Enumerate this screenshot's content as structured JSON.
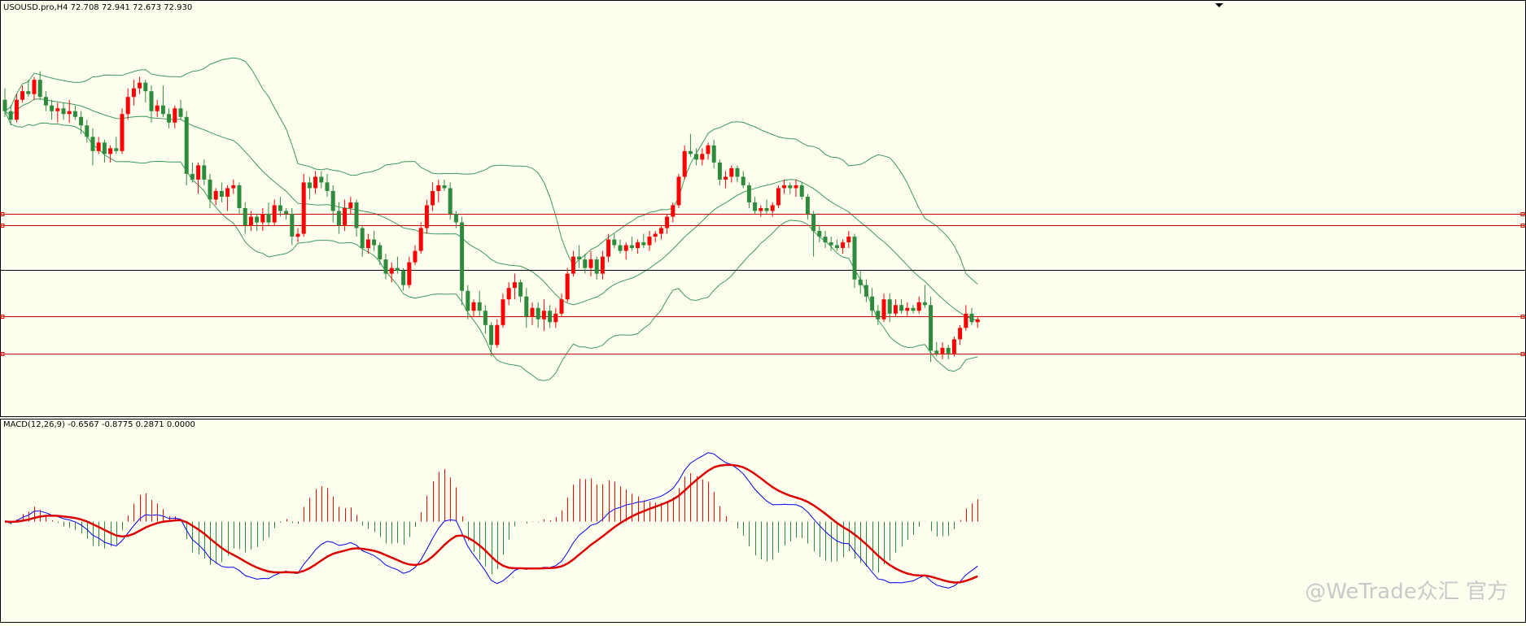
{
  "header": {
    "main_label": "USOUSD.pro,H4  72.708 72.941 72.673 72.930",
    "macd_label": "MACD(12,26,9) -0.6567 -0.8775 0.2871 0.0000"
  },
  "watermark": "@WeTrade众汇 官方",
  "colors": {
    "background": "#fffff0",
    "bull": "#ff0000",
    "bear": "#2e8b3c",
    "band": "#3a9a5a",
    "level": "#cc0000",
    "current": "#000000",
    "macd": "#0000ee",
    "signal": "#dd0000"
  },
  "chart_data": [
    {
      "type": "candlestick",
      "symbol": "USOUSD.pro",
      "timeframe": "H4",
      "last_bar": {
        "open": 72.708,
        "high": 72.941,
        "low": 72.673,
        "close": 72.93
      },
      "ylim": [
        68.0,
        82.0
      ],
      "grid": false,
      "overlay": "bollinger-bands",
      "ohlc": [
        [
          78.9,
          79.3,
          78.3,
          78.5
        ],
        [
          78.5,
          78.7,
          78.0,
          78.2
        ],
        [
          78.2,
          79.1,
          78.1,
          78.9
        ],
        [
          78.9,
          79.4,
          78.8,
          79.2
        ],
        [
          79.2,
          79.6,
          79.0,
          79.1
        ],
        [
          79.1,
          79.7,
          78.9,
          79.6
        ],
        [
          79.6,
          79.9,
          78.9,
          79.0
        ],
        [
          79.0,
          79.2,
          78.5,
          78.7
        ],
        [
          78.7,
          78.9,
          78.2,
          78.5
        ],
        [
          78.5,
          78.8,
          78.1,
          78.6
        ],
        [
          78.6,
          78.8,
          78.2,
          78.4
        ],
        [
          78.4,
          78.9,
          78.1,
          78.5
        ],
        [
          78.5,
          78.7,
          78.2,
          78.3
        ],
        [
          78.3,
          78.5,
          77.7,
          78.0
        ],
        [
          78.0,
          78.2,
          77.4,
          77.6
        ],
        [
          77.6,
          77.9,
          76.6,
          77.1
        ],
        [
          77.1,
          77.6,
          77.0,
          77.4
        ],
        [
          77.4,
          77.5,
          76.7,
          77.0
        ],
        [
          77.0,
          77.3,
          76.7,
          77.2
        ],
        [
          77.2,
          77.6,
          77.0,
          77.1
        ],
        [
          77.1,
          78.6,
          77.0,
          78.4
        ],
        [
          78.4,
          79.3,
          78.2,
          79.0
        ],
        [
          79.0,
          79.6,
          78.7,
          79.3
        ],
        [
          79.3,
          79.7,
          79.1,
          79.5
        ],
        [
          79.5,
          79.6,
          78.8,
          79.2
        ],
        [
          79.2,
          79.4,
          78.1,
          78.5
        ],
        [
          78.5,
          78.9,
          78.3,
          78.7
        ],
        [
          78.7,
          79.4,
          78.3,
          78.4
        ],
        [
          78.4,
          78.6,
          77.9,
          78.1
        ],
        [
          78.1,
          78.7,
          77.9,
          78.6
        ],
        [
          78.6,
          78.9,
          78.2,
          78.3
        ],
        [
          78.3,
          78.5,
          75.9,
          76.3
        ],
        [
          76.3,
          76.7,
          76.0,
          76.1
        ],
        [
          76.1,
          76.7,
          75.6,
          76.6
        ],
        [
          76.6,
          76.8,
          75.9,
          76.1
        ],
        [
          76.1,
          76.3,
          75.1,
          75.4
        ],
        [
          75.4,
          75.8,
          75.2,
          75.7
        ],
        [
          75.7,
          76.0,
          75.3,
          75.5
        ],
        [
          75.5,
          75.9,
          75.0,
          75.8
        ],
        [
          75.8,
          76.1,
          75.6,
          75.9
        ],
        [
          75.9,
          76.0,
          74.9,
          75.1
        ],
        [
          75.1,
          75.3,
          74.2,
          74.5
        ],
        [
          74.5,
          75.0,
          74.3,
          74.8
        ],
        [
          74.8,
          74.9,
          74.3,
          74.6
        ],
        [
          74.6,
          75.1,
          74.3,
          74.9
        ],
        [
          74.9,
          75.3,
          74.5,
          74.6
        ],
        [
          74.6,
          75.4,
          74.5,
          75.2
        ],
        [
          75.2,
          75.5,
          74.8,
          75.0
        ],
        [
          75.0,
          75.1,
          74.7,
          74.9
        ],
        [
          74.9,
          75.1,
          73.8,
          74.1
        ],
        [
          74.1,
          74.4,
          73.9,
          74.2
        ],
        [
          74.2,
          76.3,
          74.1,
          76.0
        ],
        [
          76.0,
          76.2,
          75.4,
          75.8
        ],
        [
          75.8,
          76.4,
          75.6,
          76.2
        ],
        [
          76.2,
          76.4,
          75.8,
          76.0
        ],
        [
          76.0,
          76.3,
          75.5,
          75.7
        ],
        [
          75.7,
          75.9,
          74.6,
          75.0
        ],
        [
          75.0,
          75.3,
          74.2,
          74.5
        ],
        [
          74.5,
          75.4,
          74.3,
          75.1
        ],
        [
          75.1,
          75.5,
          74.9,
          75.3
        ],
        [
          75.3,
          75.4,
          74.1,
          74.4
        ],
        [
          74.4,
          74.5,
          73.4,
          73.7
        ],
        [
          73.7,
          74.2,
          73.5,
          74.0
        ],
        [
          74.0,
          74.3,
          73.6,
          73.8
        ],
        [
          73.8,
          73.9,
          73.1,
          73.3
        ],
        [
          73.3,
          73.5,
          72.6,
          72.8
        ],
        [
          72.8,
          73.2,
          72.5,
          73.0
        ],
        [
          73.0,
          73.4,
          72.8,
          72.9
        ],
        [
          72.9,
          73.0,
          72.2,
          72.4
        ],
        [
          72.4,
          73.4,
          72.3,
          73.2
        ],
        [
          73.2,
          73.8,
          73.1,
          73.6
        ],
        [
          73.6,
          74.6,
          73.5,
          74.4
        ],
        [
          74.4,
          75.4,
          74.2,
          75.2
        ],
        [
          75.2,
          76.0,
          75.0,
          75.7
        ],
        [
          75.7,
          76.1,
          75.3,
          75.9
        ],
        [
          75.9,
          76.1,
          75.7,
          75.8
        ],
        [
          75.8,
          76.0,
          74.7,
          74.9
        ],
        [
          74.9,
          75.0,
          74.4,
          74.6
        ],
        [
          74.6,
          74.8,
          71.7,
          72.2
        ],
        [
          72.2,
          72.4,
          71.2,
          71.5
        ],
        [
          71.5,
          71.9,
          71.3,
          71.8
        ],
        [
          71.8,
          72.2,
          71.3,
          71.5
        ],
        [
          71.5,
          71.7,
          70.7,
          71.0
        ],
        [
          71.0,
          71.1,
          69.9,
          70.3
        ],
        [
          70.3,
          71.2,
          70.2,
          71.0
        ],
        [
          71.0,
          72.1,
          70.9,
          71.9
        ],
        [
          71.9,
          72.5,
          71.7,
          72.3
        ],
        [
          72.3,
          72.8,
          71.9,
          72.5
        ],
        [
          72.5,
          72.6,
          71.8,
          72.0
        ],
        [
          72.0,
          72.3,
          70.9,
          71.3
        ],
        [
          71.3,
          71.8,
          71.0,
          71.6
        ],
        [
          71.6,
          71.8,
          70.9,
          71.2
        ],
        [
          71.2,
          71.9,
          70.8,
          71.5
        ],
        [
          71.5,
          71.7,
          70.9,
          71.1
        ],
        [
          71.1,
          71.6,
          70.9,
          71.4
        ],
        [
          71.4,
          72.1,
          71.3,
          71.9
        ],
        [
          71.9,
          73.0,
          71.8,
          72.8
        ],
        [
          72.8,
          73.6,
          72.7,
          73.4
        ],
        [
          73.4,
          73.8,
          73.0,
          73.3
        ],
        [
          73.3,
          73.5,
          72.8,
          73.0
        ],
        [
          73.0,
          73.6,
          72.7,
          73.3
        ],
        [
          73.3,
          73.4,
          72.6,
          72.8
        ],
        [
          72.8,
          73.6,
          72.6,
          73.4
        ],
        [
          73.4,
          74.2,
          73.2,
          74.0
        ],
        [
          74.0,
          74.2,
          73.7,
          73.8
        ],
        [
          73.8,
          74.0,
          73.5,
          73.6
        ],
        [
          73.6,
          73.9,
          73.3,
          73.8
        ],
        [
          73.8,
          74.1,
          73.6,
          73.7
        ],
        [
          73.7,
          74.0,
          73.5,
          73.9
        ],
        [
          73.9,
          74.2,
          73.7,
          73.8
        ],
        [
          73.8,
          74.3,
          73.6,
          74.1
        ],
        [
          74.1,
          74.3,
          73.9,
          74.2
        ],
        [
          74.2,
          74.5,
          74.0,
          74.4
        ],
        [
          74.4,
          74.9,
          74.2,
          74.8
        ],
        [
          74.8,
          75.3,
          74.6,
          75.2
        ],
        [
          75.2,
          76.3,
          75.1,
          76.2
        ],
        [
          76.2,
          77.3,
          76.1,
          77.1
        ],
        [
          77.1,
          77.7,
          76.9,
          77.0
        ],
        [
          77.0,
          77.2,
          76.6,
          76.8
        ],
        [
          76.8,
          77.2,
          76.6,
          77.0
        ],
        [
          77.0,
          77.4,
          76.8,
          77.3
        ],
        [
          77.3,
          77.5,
          76.5,
          76.7
        ],
        [
          76.7,
          76.8,
          75.9,
          76.1
        ],
        [
          76.1,
          76.4,
          75.8,
          76.2
        ],
        [
          76.2,
          76.6,
          76.0,
          76.5
        ],
        [
          76.5,
          76.6,
          76.0,
          76.2
        ],
        [
          76.2,
          76.4,
          75.8,
          75.9
        ],
        [
          75.9,
          76.0,
          75.1,
          75.3
        ],
        [
          75.3,
          75.5,
          74.9,
          75.0
        ],
        [
          75.0,
          75.2,
          74.8,
          75.1
        ],
        [
          75.1,
          75.4,
          74.9,
          75.0
        ],
        [
          75.0,
          75.3,
          74.8,
          75.2
        ],
        [
          75.2,
          75.9,
          75.1,
          75.8
        ],
        [
          75.8,
          76.1,
          75.6,
          75.9
        ],
        [
          75.9,
          76.0,
          75.6,
          75.8
        ],
        [
          75.8,
          76.1,
          75.5,
          75.9
        ],
        [
          75.9,
          76.0,
          75.4,
          75.5
        ],
        [
          75.5,
          75.6,
          74.7,
          74.9
        ],
        [
          74.9,
          75.0,
          73.4,
          74.3
        ],
        [
          74.3,
          74.5,
          73.9,
          74.1
        ],
        [
          74.1,
          74.3,
          73.7,
          73.9
        ],
        [
          73.9,
          74.1,
          73.6,
          73.8
        ],
        [
          73.8,
          74.0,
          73.6,
          73.7
        ],
        [
          73.7,
          74.0,
          73.5,
          73.9
        ],
        [
          73.9,
          74.3,
          73.7,
          74.1
        ],
        [
          74.1,
          74.2,
          72.3,
          72.6
        ],
        [
          72.6,
          72.9,
          72.1,
          72.4
        ],
        [
          72.4,
          72.6,
          71.8,
          72.0
        ],
        [
          72.0,
          72.3,
          71.3,
          71.5
        ],
        [
          71.5,
          71.7,
          71.0,
          71.2
        ],
        [
          71.2,
          72.1,
          71.1,
          71.9
        ],
        [
          71.9,
          72.1,
          71.1,
          71.4
        ],
        [
          71.4,
          71.9,
          71.3,
          71.7
        ],
        [
          71.7,
          71.9,
          71.4,
          71.5
        ],
        [
          71.5,
          71.8,
          71.3,
          71.6
        ],
        [
          71.6,
          71.7,
          71.4,
          71.5
        ],
        [
          71.5,
          72.0,
          71.4,
          71.8
        ],
        [
          71.8,
          72.4,
          71.6,
          71.7
        ],
        [
          71.7,
          72.0,
          69.7,
          70.1
        ],
        [
          70.1,
          70.4,
          69.9,
          70.0
        ],
        [
          70.0,
          70.4,
          69.8,
          70.2
        ],
        [
          70.2,
          70.3,
          69.8,
          70.0
        ],
        [
          70.0,
          70.6,
          69.9,
          70.5
        ],
        [
          70.5,
          71.0,
          70.3,
          70.9
        ],
        [
          70.9,
          71.7,
          70.8,
          71.4
        ],
        [
          71.4,
          71.6,
          71.0,
          71.1
        ],
        [
          71.1,
          71.3,
          70.9,
          71.2
        ]
      ],
      "levels": [
        74.9,
        74.5,
        71.3,
        70.0
      ],
      "current_price": 72.93
    },
    {
      "type": "line",
      "indicator": "MACD",
      "params": [
        12,
        26,
        9
      ],
      "values": {
        "main": -0.6567,
        "signal": -0.8775,
        "histogram": 0.2871,
        "zero": 0.0
      },
      "ylim": [
        -1.5,
        1.5
      ],
      "grid": false
    }
  ]
}
